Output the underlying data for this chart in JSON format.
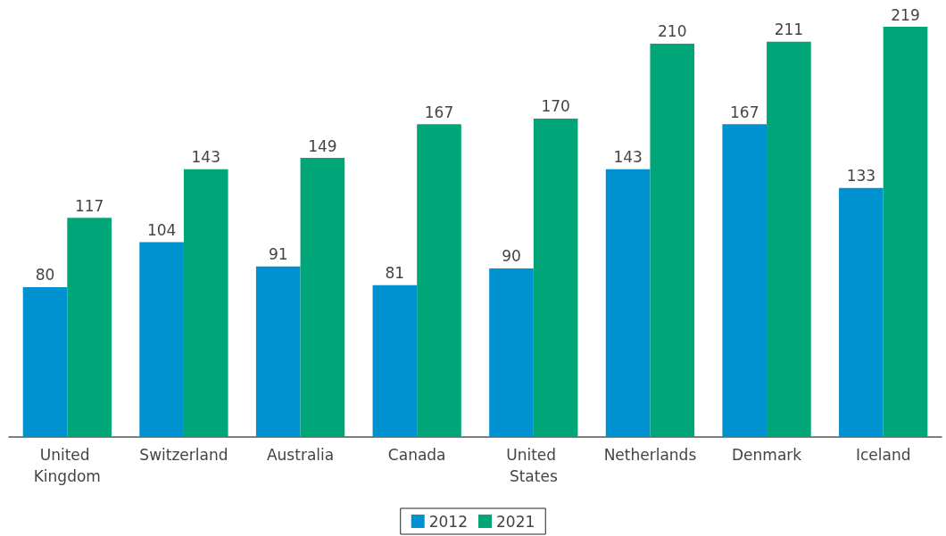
{
  "chart_data": {
    "type": "bar",
    "categories": [
      "United Kingdom",
      "Switzerland",
      "Australia",
      "Canada",
      "United States",
      "Netherlands",
      "Denmark",
      "Iceland"
    ],
    "series": [
      {
        "name": "2012",
        "color": "#0091d1",
        "values": [
          80,
          104,
          91,
          81,
          90,
          143,
          167,
          133
        ]
      },
      {
        "name": "2021",
        "color": "#00a677",
        "values": [
          117,
          143,
          149,
          167,
          170,
          210,
          211,
          219
        ]
      }
    ],
    "data_labels": true,
    "grid": false,
    "legend": "bottom"
  }
}
